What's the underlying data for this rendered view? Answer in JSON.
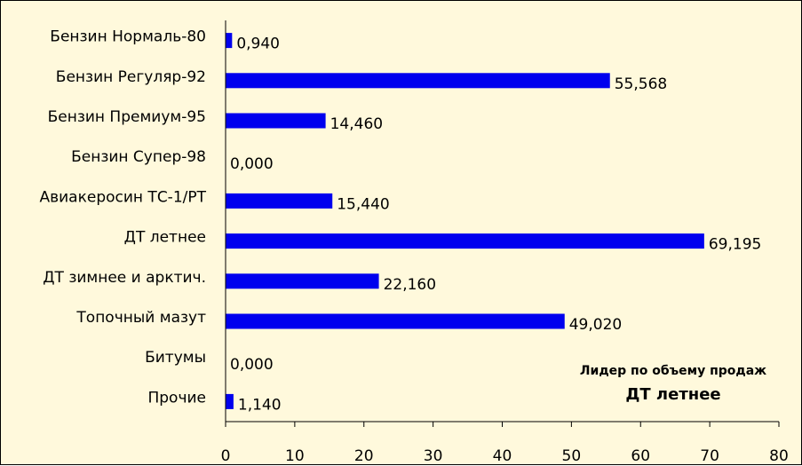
{
  "chart_data": {
    "type": "bar",
    "orientation": "horizontal",
    "categories": [
      "Бензин Нормаль-80",
      "Бензин Регуляр-92",
      "Бензин Премиум-95",
      "Бензин Супер-98",
      "Авиакеросин ТС-1/РТ",
      "ДТ летнее",
      "ДТ зимнее и арктич.",
      "Топочный мазут",
      "Битумы",
      "Прочие"
    ],
    "values": [
      0.94,
      55.568,
      14.46,
      0.0,
      15.44,
      69.195,
      22.16,
      49.02,
      0.0,
      1.14
    ],
    "value_labels": [
      "0,940",
      "55,568",
      "14,460",
      "0,000",
      "15,440",
      "69,195",
      "22,160",
      "49,020",
      "0,000",
      "1,140"
    ],
    "xlim": [
      0,
      80
    ],
    "x_ticks": [
      0,
      10,
      20,
      30,
      40,
      50,
      60,
      70,
      80
    ],
    "bar_color": "#0000EE",
    "background_color": "#FFF9DC",
    "grid": false,
    "annotation": {
      "line1": "Лидер по объему продаж",
      "line2": "ДТ летнее",
      "position": "bottom-right"
    }
  }
}
